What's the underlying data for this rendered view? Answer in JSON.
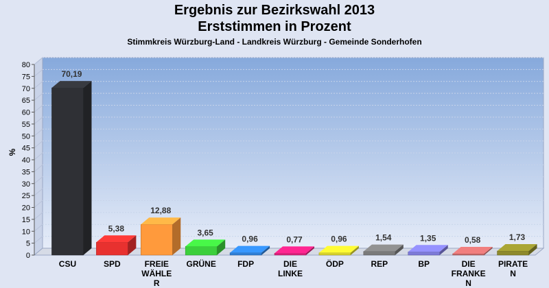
{
  "title": "Ergebnis zur Bezirkswahl 2013",
  "subtitle": "Erststimmen in Prozent",
  "subtitle2": "Stimmkreis Würzburg-Land - Landkreis Würzburg - Gemeinde Sonderhofen",
  "chart_data": {
    "type": "bar",
    "ylabel": "%",
    "ylim": [
      0,
      80
    ],
    "yticks": [
      0,
      5,
      10,
      15,
      20,
      25,
      30,
      35,
      40,
      45,
      50,
      55,
      60,
      65,
      70,
      75,
      80
    ],
    "grid": true,
    "legend": "none",
    "categories": [
      [
        "CSU"
      ],
      [
        "SPD"
      ],
      [
        "FREIE",
        "WÄHLE",
        "R"
      ],
      [
        "GRÜNE"
      ],
      [
        "FDP"
      ],
      [
        "DIE",
        "LINKE"
      ],
      [
        "ÖDP"
      ],
      [
        "REP"
      ],
      [
        "BP"
      ],
      [
        "DIE",
        "FRANKE",
        "N"
      ],
      [
        "PIRATE",
        "N"
      ]
    ],
    "values": [
      70.19,
      5.38,
      12.88,
      3.65,
      0.96,
      0.77,
      0.96,
      1.54,
      1.35,
      0.58,
      1.73
    ],
    "value_labels": [
      "70,19",
      "5,38",
      "12,88",
      "3,65",
      "0,96",
      "0,77",
      "0,96",
      "1,54",
      "1,35",
      "0,58",
      "1,73"
    ],
    "colors": [
      "#2f3035",
      "#e8312f",
      "#ff9a3c",
      "#3ccf3c",
      "#2f7fd6",
      "#d8207a",
      "#d8d22c",
      "#7a7a7a",
      "#7d7ad8",
      "#c96a6a",
      "#8e8a2c"
    ]
  }
}
